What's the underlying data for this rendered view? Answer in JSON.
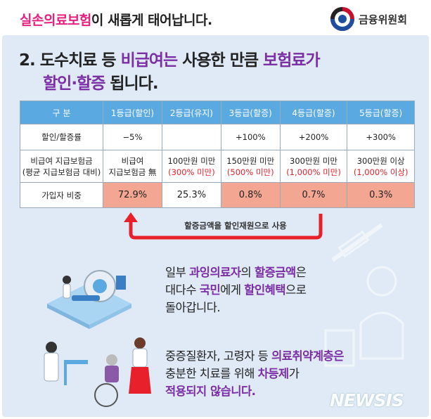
{
  "header": {
    "title_highlight": "실손의료보험",
    "title_rest": "이 새롭게 태어납니다.",
    "logo_text": "금융위원회",
    "logo_icon": "taegeuk-emblem-icon"
  },
  "headline": {
    "prefix": "2. 도수치료 등 ",
    "hl1": "비급여는",
    "mid": " 사용한 만큼 ",
    "hl2": "보험료가",
    "hl3": "할인·할증",
    "suffix": " 됩니다."
  },
  "table": {
    "headers": [
      "구 분",
      "1등급(할인)",
      "2등급(유지)",
      "3등급(할증)",
      "4등급(할증)",
      "5등급(할증)"
    ],
    "rate_row": {
      "label": "할인/할증률",
      "values": [
        "−5%",
        "",
        "+100%",
        "+200%",
        "+300%"
      ]
    },
    "benefit_row": {
      "label_line1": "비급여 지급보험금",
      "label_line2": "(평균 지급보험금 대비)",
      "values": [
        {
          "line1": "비급여",
          "line2": "지급보험금 無",
          "red": ""
        },
        {
          "line1": "100만원 미만",
          "line2": "",
          "red": "(300% 미만)"
        },
        {
          "line1": "150만원 미만",
          "line2": "",
          "red": "(500% 미만)"
        },
        {
          "line1": "300만원 미만",
          "line2": "",
          "red": "(1,000% 미만)"
        },
        {
          "line1": "300만원 이상",
          "line2": "",
          "red": "(1,000% 이상)"
        }
      ]
    },
    "share_row": {
      "label": "가입자 비중",
      "values": [
        "72.9%",
        "25.3%",
        "0.8%",
        "0.7%",
        "0.3%"
      ]
    },
    "colors": {
      "header_bg": "#5aa9e0",
      "highlight_bg": "#f3a793",
      "red_text": "#e8202b"
    }
  },
  "arrow": {
    "label": "할증금액을 할인재원으로 사용",
    "color": "#e8202b"
  },
  "paragraph1": {
    "p1": "일부 ",
    "hl1": "과잉의료자",
    "p2": "의 ",
    "hl2": "할증금액",
    "p3": "은",
    "line2_hl_pre": "대다수 ",
    "hl3": "국민",
    "p4": "에게 ",
    "hl4": "할인혜택",
    "p5": "으로",
    "line3": "돌아갑니다."
  },
  "paragraph2": {
    "p1": "중증질환자, 고령자 등 ",
    "hl1": "의료취약계층은",
    "line2_pre": "충분한 치료를 위해 ",
    "hl2": "차등제",
    "line2_post": "가",
    "hl3": "적용되지 않습니다."
  },
  "watermark": {
    "text": "NEWSIS"
  }
}
